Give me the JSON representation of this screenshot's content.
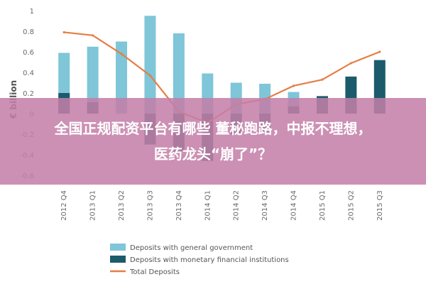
{
  "chart_data": {
    "type": "bar",
    "ylabel": "€ billion",
    "ylim": [
      -0.7,
      1.0
    ],
    "yticks": [
      "1",
      "0.8",
      "0.6",
      "0.4",
      "0.2",
      "0",
      "-0.2",
      "-0.4",
      "-0.6"
    ],
    "ytick_values": [
      1,
      0.8,
      0.6,
      0.4,
      0.2,
      0,
      -0.2,
      -0.4,
      -0.6
    ],
    "categories": [
      "2012 Q4",
      "2013 Q1",
      "2013 Q2",
      "2013 Q3",
      "2013 Q4",
      "2014 Q1",
      "2014 Q2",
      "2014 Q3",
      "2014 Q4",
      "2015 Q1",
      "2015 Q2",
      "2015 Q3"
    ],
    "series": [
      {
        "name": "Deposits with general government",
        "kind": "bar",
        "color": "#7ec6d8",
        "values": [
          0.59,
          0.65,
          0.7,
          0.95,
          0.78,
          0.39,
          0.3,
          0.29,
          0.21,
          0.16,
          0.14,
          0.08
        ]
      },
      {
        "name": "Deposits with monetary financial institutions",
        "kind": "bar",
        "color": "#1c5b6b",
        "values": [
          0.2,
          0.11,
          0.0,
          -0.3,
          -0.37,
          -0.46,
          -0.2,
          -0.18,
          0.07,
          0.17,
          0.36,
          0.52
        ]
      },
      {
        "name": "Total Deposits",
        "kind": "line",
        "color": "#e57f45",
        "values": [
          0.79,
          0.76,
          0.58,
          0.37,
          0.02,
          -0.09,
          0.09,
          0.14,
          0.27,
          0.33,
          0.49,
          0.6
        ]
      }
    ],
    "legend_position": "bottom",
    "grid": false
  },
  "banner": {
    "line1": "全国正规配资平台有哪些 董秘跑路，中报不理想，",
    "line2": "医药龙头“崩了”？"
  }
}
